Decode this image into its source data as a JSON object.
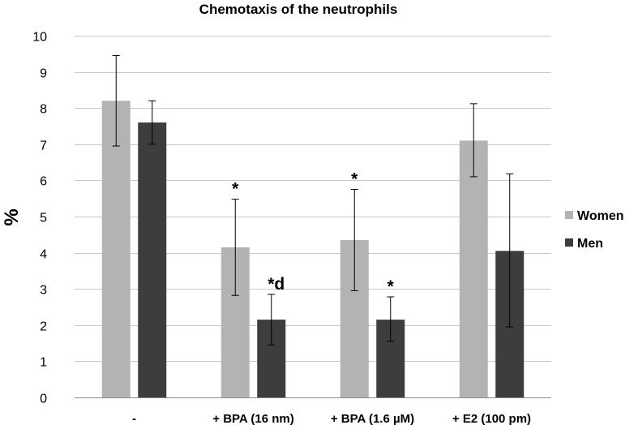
{
  "chart_data": {
    "type": "bar",
    "title": "Chemotaxis of the neutrophils",
    "xlabel": "",
    "ylabel": "%",
    "ylim": [
      0,
      10
    ],
    "yticks": [
      "0",
      "1",
      "2",
      "3",
      "4",
      "5",
      "6",
      "7",
      "8",
      "9",
      "10"
    ],
    "grid": true,
    "legend_position": "right",
    "categories": [
      "-",
      "+ BPA (16 nm)",
      "+ BPA (1.6 µM)",
      "+ E2 (100 pm)"
    ],
    "series": [
      {
        "name": "Women",
        "color": "#b3b3b3",
        "values": [
          8.2,
          4.15,
          4.35,
          7.1
        ],
        "err_low": [
          6.95,
          2.82,
          2.95,
          6.1
        ],
        "err_high": [
          9.45,
          5.48,
          5.75,
          8.12
        ],
        "annotations": [
          "",
          "*",
          "*",
          ""
        ]
      },
      {
        "name": "Men",
        "color": "#3d3d3d",
        "values": [
          7.6,
          2.15,
          2.15,
          4.05
        ],
        "err_low": [
          7.0,
          1.45,
          1.55,
          1.95
        ],
        "err_high": [
          8.2,
          2.85,
          2.78,
          6.18
        ],
        "annotations": [
          "",
          "*d",
          "*",
          ""
        ]
      }
    ]
  }
}
